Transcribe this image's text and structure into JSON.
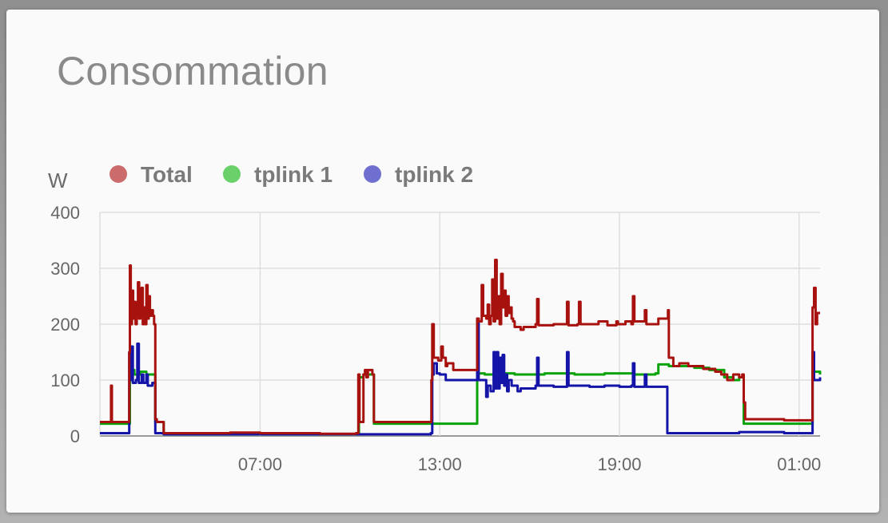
{
  "card": {
    "title": "Consommation"
  },
  "chart_data": {
    "type": "line",
    "title": "Consommation",
    "ylabel": "W",
    "xlabel": "",
    "ylim": [
      0,
      400
    ],
    "yticks": [
      0,
      100,
      200,
      300,
      400
    ],
    "xticks": [
      {
        "label": "07:00",
        "t": 7.0
      },
      {
        "label": "13:00",
        "t": 13.0
      },
      {
        "label": "19:00",
        "t": 19.0
      },
      {
        "label": "01:00",
        "t": 25.0
      }
    ],
    "xrange_hours": [
      1.65,
      25.7
    ],
    "grid": true,
    "legend_position": "top-left",
    "series": [
      {
        "name": "Total",
        "color": "#a8120e",
        "legend_color": "#cc6b6b",
        "points": [
          [
            1.65,
            25
          ],
          [
            2.0,
            25
          ],
          [
            2.02,
            90
          ],
          [
            2.05,
            25
          ],
          [
            2.6,
            25
          ],
          [
            2.63,
            150
          ],
          [
            2.65,
            305
          ],
          [
            2.68,
            200
          ],
          [
            2.72,
            260
          ],
          [
            2.76,
            210
          ],
          [
            2.8,
            240
          ],
          [
            2.84,
            200
          ],
          [
            2.88,
            230
          ],
          [
            2.92,
            275
          ],
          [
            2.96,
            210
          ],
          [
            3.0,
            220
          ],
          [
            3.04,
            265
          ],
          [
            3.08,
            200
          ],
          [
            3.12,
            230
          ],
          [
            3.16,
            200
          ],
          [
            3.2,
            270
          ],
          [
            3.24,
            210
          ],
          [
            3.28,
            250
          ],
          [
            3.32,
            215
          ],
          [
            3.36,
            225
          ],
          [
            3.42,
            215
          ],
          [
            3.46,
            200
          ],
          [
            3.5,
            30
          ],
          [
            3.55,
            25
          ],
          [
            3.75,
            25
          ],
          [
            3.78,
            5
          ],
          [
            5.0,
            5
          ],
          [
            6.0,
            6
          ],
          [
            7.0,
            5
          ],
          [
            8.0,
            5
          ],
          [
            9.0,
            4
          ],
          [
            10.2,
            5
          ],
          [
            10.25,
            5
          ],
          [
            10.28,
            110
          ],
          [
            10.32,
            25
          ],
          [
            10.38,
            25
          ],
          [
            10.42,
            25
          ],
          [
            10.45,
            110
          ],
          [
            10.5,
            118
          ],
          [
            10.55,
            105
          ],
          [
            10.6,
            118
          ],
          [
            10.75,
            110
          ],
          [
            10.8,
            25
          ],
          [
            11.6,
            25
          ],
          [
            12.7,
            25
          ],
          [
            12.72,
            100
          ],
          [
            12.75,
            200
          ],
          [
            12.8,
            140
          ],
          [
            12.9,
            140
          ],
          [
            12.95,
            135
          ],
          [
            13.05,
            160
          ],
          [
            13.1,
            140
          ],
          [
            13.2,
            125
          ],
          [
            13.25,
            130
          ],
          [
            13.45,
            118
          ],
          [
            14.2,
            118
          ],
          [
            14.25,
            210
          ],
          [
            14.3,
            205
          ],
          [
            14.4,
            270
          ],
          [
            14.45,
            215
          ],
          [
            14.55,
            210
          ],
          [
            14.6,
            235
          ],
          [
            14.65,
            200
          ],
          [
            14.7,
            215
          ],
          [
            14.75,
            280
          ],
          [
            14.8,
            205
          ],
          [
            14.85,
            315
          ],
          [
            14.9,
            210
          ],
          [
            14.95,
            250
          ],
          [
            15.0,
            200
          ],
          [
            15.05,
            290
          ],
          [
            15.1,
            230
          ],
          [
            15.15,
            260
          ],
          [
            15.2,
            215
          ],
          [
            15.25,
            250
          ],
          [
            15.3,
            220
          ],
          [
            15.35,
            230
          ],
          [
            15.4,
            210
          ],
          [
            15.45,
            205
          ],
          [
            15.5,
            195
          ],
          [
            15.6,
            195
          ],
          [
            15.7,
            190
          ],
          [
            15.8,
            195
          ],
          [
            16.0,
            195
          ],
          [
            16.2,
            200
          ],
          [
            16.25,
            245
          ],
          [
            16.3,
            198
          ],
          [
            16.8,
            200
          ],
          [
            17.0,
            200
          ],
          [
            17.2,
            200
          ],
          [
            17.25,
            240
          ],
          [
            17.3,
            198
          ],
          [
            17.6,
            200
          ],
          [
            17.65,
            240
          ],
          [
            17.7,
            200
          ],
          [
            18.0,
            200
          ],
          [
            18.3,
            205
          ],
          [
            18.6,
            198
          ],
          [
            18.9,
            205
          ],
          [
            18.95,
            200
          ],
          [
            19.2,
            205
          ],
          [
            19.4,
            200
          ],
          [
            19.45,
            250
          ],
          [
            19.5,
            205
          ],
          [
            19.8,
            205
          ],
          [
            19.85,
            225
          ],
          [
            19.9,
            200
          ],
          [
            20.2,
            200
          ],
          [
            20.3,
            210
          ],
          [
            20.6,
            210
          ],
          [
            20.62,
            225
          ],
          [
            20.65,
            140
          ],
          [
            20.8,
            125
          ],
          [
            21.0,
            130
          ],
          [
            21.3,
            125
          ],
          [
            21.6,
            125
          ],
          [
            21.8,
            120
          ],
          [
            22.0,
            120
          ],
          [
            22.2,
            115
          ],
          [
            22.4,
            110
          ],
          [
            22.6,
            100
          ],
          [
            22.8,
            110
          ],
          [
            23.0,
            105
          ],
          [
            23.1,
            110
          ],
          [
            23.15,
            60
          ],
          [
            23.2,
            30
          ],
          [
            23.6,
            30
          ],
          [
            24.0,
            30
          ],
          [
            24.5,
            28
          ],
          [
            25.0,
            28
          ],
          [
            25.4,
            28
          ],
          [
            25.45,
            230
          ],
          [
            25.5,
            265
          ],
          [
            25.55,
            200
          ],
          [
            25.6,
            220
          ],
          [
            25.7,
            220
          ]
        ]
      },
      {
        "name": "tplink 1",
        "color": "#0aa40a",
        "legend_color": "#6ad16a",
        "points": [
          [
            1.65,
            22
          ],
          [
            2.6,
            22
          ],
          [
            2.65,
            110
          ],
          [
            2.7,
            118
          ],
          [
            2.8,
            110
          ],
          [
            3.0,
            115
          ],
          [
            3.2,
            110
          ],
          [
            3.4,
            110
          ],
          [
            3.5,
            25
          ],
          [
            3.78,
            3
          ],
          [
            5.0,
            3
          ],
          [
            7.0,
            3
          ],
          [
            9.0,
            3
          ],
          [
            10.28,
            3
          ],
          [
            10.3,
            105
          ],
          [
            10.45,
            110
          ],
          [
            10.6,
            110
          ],
          [
            10.8,
            22
          ],
          [
            11.6,
            22
          ],
          [
            12.7,
            22
          ],
          [
            12.72,
            22
          ],
          [
            14.2,
            22
          ],
          [
            14.25,
            112
          ],
          [
            14.5,
            110
          ],
          [
            15.0,
            112
          ],
          [
            15.5,
            110
          ],
          [
            16.5,
            112
          ],
          [
            17.5,
            110
          ],
          [
            18.5,
            112
          ],
          [
            19.5,
            110
          ],
          [
            20.2,
            112
          ],
          [
            20.3,
            128
          ],
          [
            20.6,
            128
          ],
          [
            20.65,
            125
          ],
          [
            21.0,
            125
          ],
          [
            21.5,
            122
          ],
          [
            22.0,
            118
          ],
          [
            22.5,
            105
          ],
          [
            22.8,
            100
          ],
          [
            23.0,
            105
          ],
          [
            23.15,
            22
          ],
          [
            24.0,
            22
          ],
          [
            25.0,
            22
          ],
          [
            25.4,
            22
          ],
          [
            25.45,
            115
          ],
          [
            25.7,
            110
          ]
        ]
      },
      {
        "name": "tplink 2",
        "color": "#1414a8",
        "legend_color": "#6f6fcf",
        "points": [
          [
            1.65,
            5
          ],
          [
            2.6,
            5
          ],
          [
            2.63,
            150
          ],
          [
            2.66,
            100
          ],
          [
            2.7,
            160
          ],
          [
            2.75,
            95
          ],
          [
            2.85,
            100
          ],
          [
            2.9,
            165
          ],
          [
            2.95,
            95
          ],
          [
            3.05,
            110
          ],
          [
            3.1,
            95
          ],
          [
            3.2,
            110
          ],
          [
            3.25,
            90
          ],
          [
            3.4,
            95
          ],
          [
            3.48,
            95
          ],
          [
            3.5,
            5
          ],
          [
            3.78,
            3
          ],
          [
            5.0,
            3
          ],
          [
            7.0,
            3
          ],
          [
            9.0,
            3
          ],
          [
            10.28,
            3
          ],
          [
            11.6,
            3
          ],
          [
            12.7,
            5
          ],
          [
            12.72,
            5
          ],
          [
            12.75,
            110
          ],
          [
            12.8,
            130
          ],
          [
            12.9,
            112
          ],
          [
            13.0,
            110
          ],
          [
            13.2,
            100
          ],
          [
            14.2,
            100
          ],
          [
            14.25,
            210
          ],
          [
            14.3,
            100
          ],
          [
            14.5,
            100
          ],
          [
            14.55,
            70
          ],
          [
            14.6,
            90
          ],
          [
            14.7,
            80
          ],
          [
            14.8,
            150
          ],
          [
            14.85,
            85
          ],
          [
            14.9,
            150
          ],
          [
            14.95,
            85
          ],
          [
            15.0,
            140
          ],
          [
            15.05,
            95
          ],
          [
            15.1,
            145
          ],
          [
            15.15,
            90
          ],
          [
            15.2,
            110
          ],
          [
            15.25,
            80
          ],
          [
            15.3,
            100
          ],
          [
            15.4,
            90
          ],
          [
            15.5,
            90
          ],
          [
            15.6,
            80
          ],
          [
            15.7,
            85
          ],
          [
            15.8,
            85
          ],
          [
            16.0,
            85
          ],
          [
            16.2,
            90
          ],
          [
            16.25,
            140
          ],
          [
            16.3,
            90
          ],
          [
            16.8,
            88
          ],
          [
            17.25,
            150
          ],
          [
            17.3,
            90
          ],
          [
            18.0,
            88
          ],
          [
            18.5,
            90
          ],
          [
            19.0,
            88
          ],
          [
            19.4,
            90
          ],
          [
            19.45,
            130
          ],
          [
            19.5,
            88
          ],
          [
            19.8,
            88
          ],
          [
            19.85,
            110
          ],
          [
            19.9,
            88
          ],
          [
            20.2,
            88
          ],
          [
            20.55,
            88
          ],
          [
            20.6,
            5
          ],
          [
            21.0,
            5
          ],
          [
            22.0,
            5
          ],
          [
            23.0,
            7
          ],
          [
            24.0,
            7
          ],
          [
            24.5,
            5
          ],
          [
            25.0,
            5
          ],
          [
            25.4,
            5
          ],
          [
            25.45,
            150
          ],
          [
            25.5,
            100
          ],
          [
            25.7,
            105
          ]
        ]
      }
    ]
  }
}
